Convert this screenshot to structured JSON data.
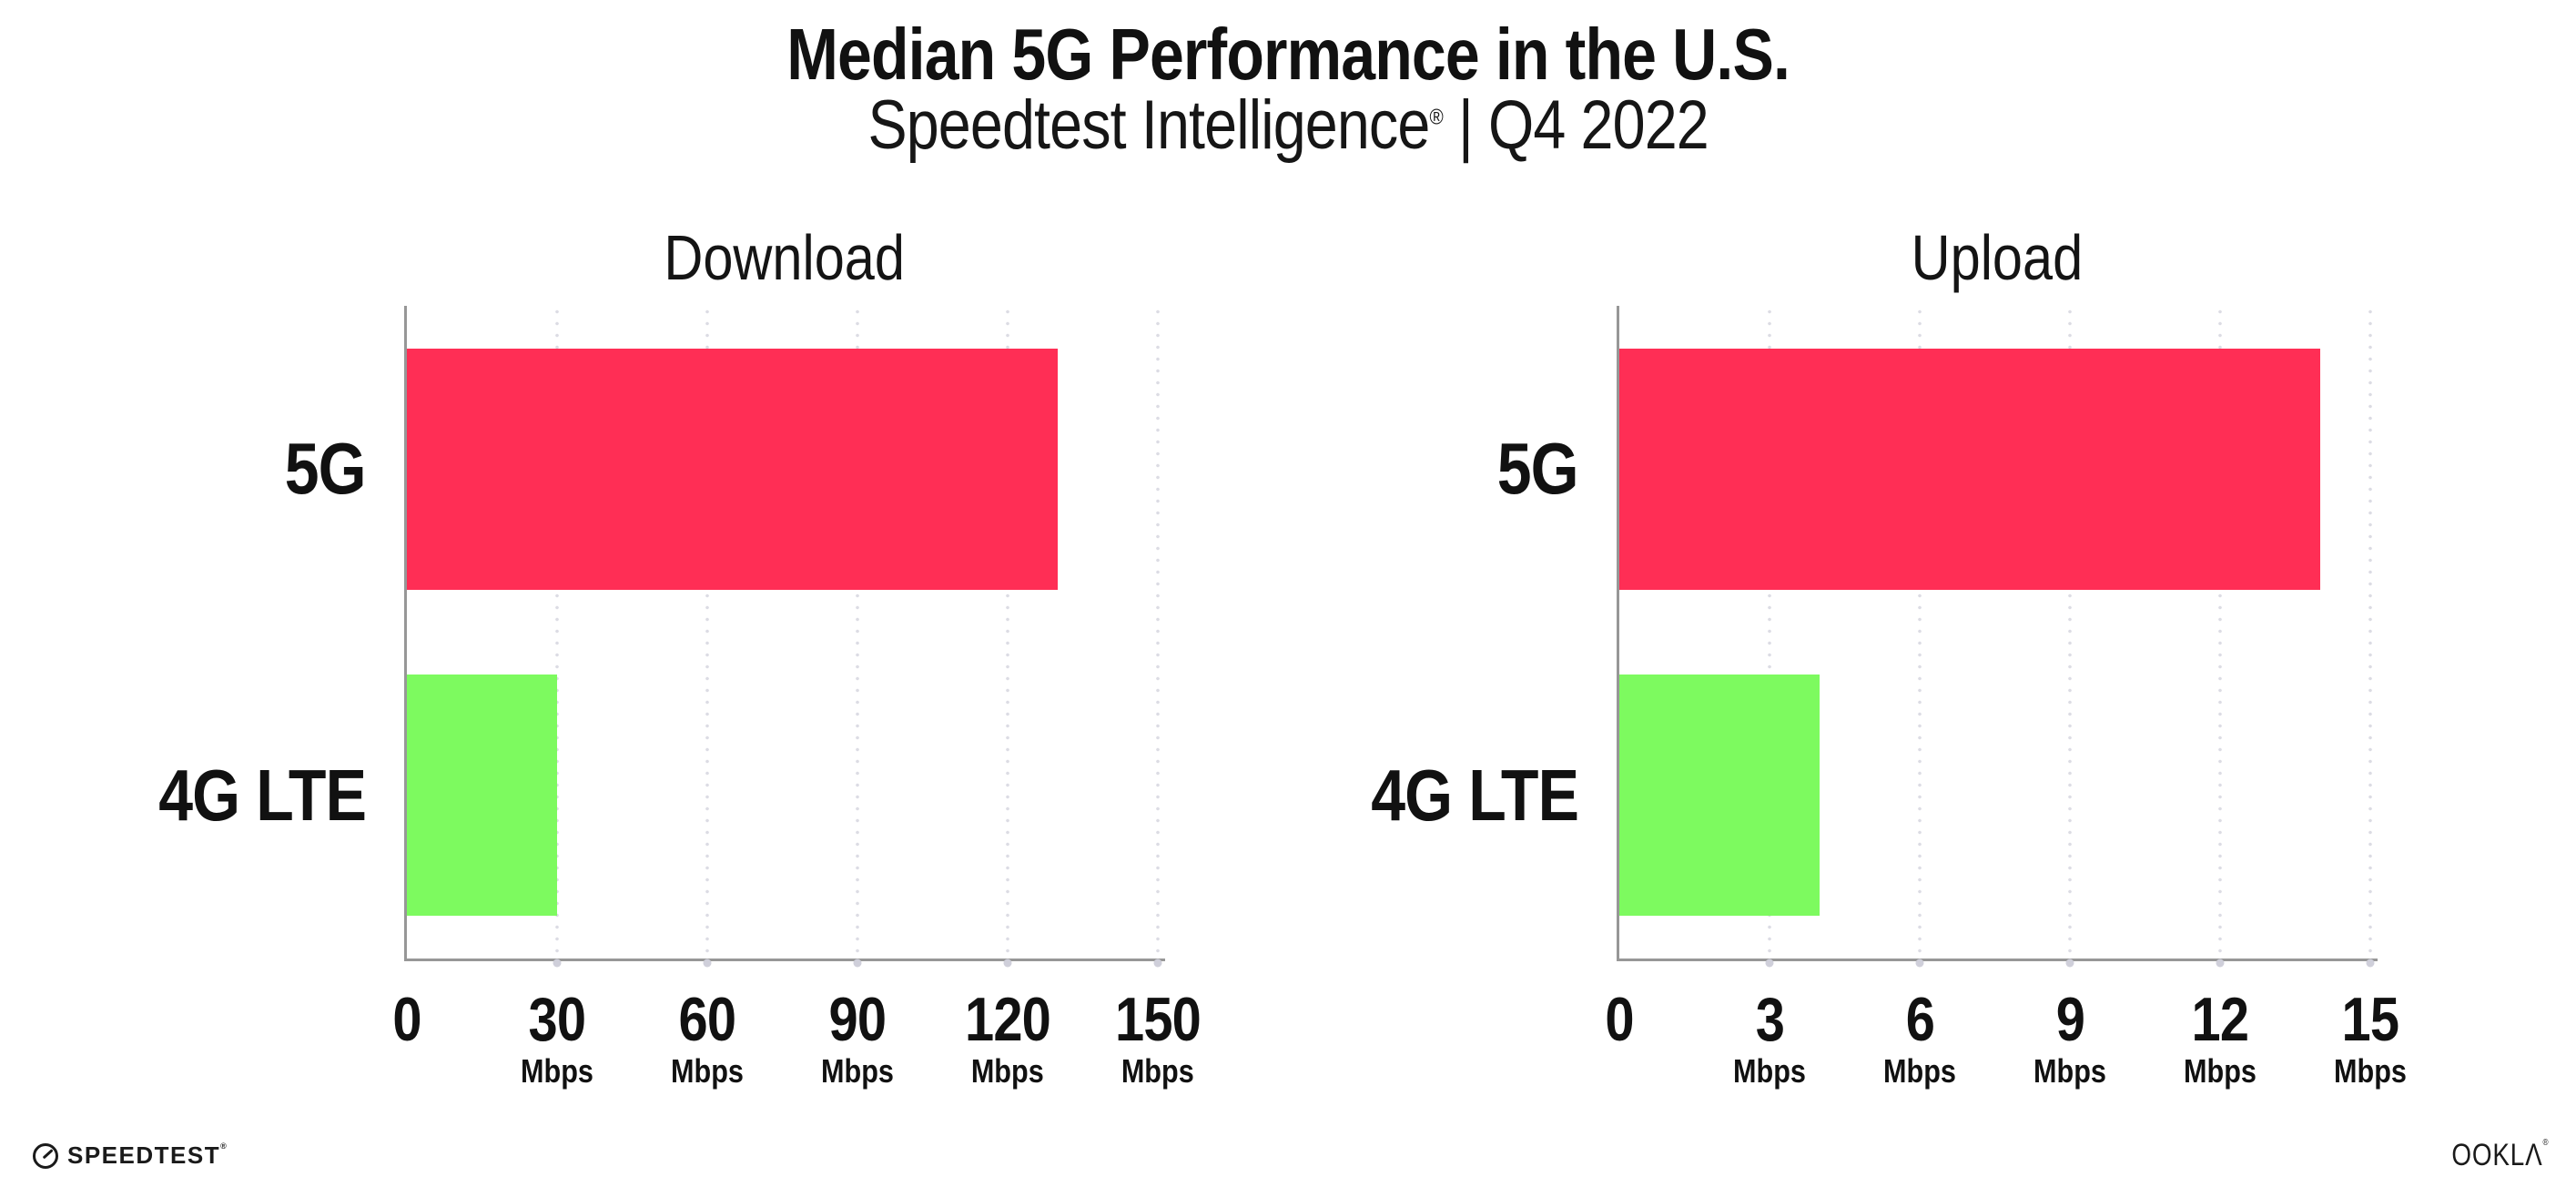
{
  "header": {
    "title": "Median 5G Performance in the U.S.",
    "subtitle_brand": "Speedtest Intelligence",
    "subtitle_reg": "®",
    "subtitle_rest": " | Q4 2022"
  },
  "colors": {
    "bar_5g": "#FF2E55",
    "bar_4g_lte": "#7DFA5F",
    "axis": "#979797",
    "grid_dot": "#DCDCE4",
    "text": "#111111",
    "background": "#FFFFFF"
  },
  "chart_data": [
    {
      "type": "bar",
      "orientation": "horizontal",
      "title": "Download",
      "categories": [
        "5G",
        "4G LTE"
      ],
      "values": [
        130,
        30
      ],
      "unit": "Mbps",
      "xlim": [
        0,
        150
      ],
      "ticks": [
        0,
        30,
        60,
        90,
        120,
        150
      ],
      "bar_colors": [
        "#FF2E55",
        "#7DFA5F"
      ],
      "grid": "dotted-vertical",
      "legend": "none"
    },
    {
      "type": "bar",
      "orientation": "horizontal",
      "title": "Upload",
      "categories": [
        "5G",
        "4G LTE"
      ],
      "values": [
        14,
        4
      ],
      "unit": "Mbps",
      "xlim": [
        0,
        15
      ],
      "ticks": [
        0,
        3,
        6,
        9,
        12,
        15
      ],
      "bar_colors": [
        "#FF2E55",
        "#7DFA5F"
      ],
      "grid": "dotted-vertical",
      "legend": "none"
    }
  ],
  "footer": {
    "speedtest_label": "SPEEDTEST",
    "speedtest_mark": "®",
    "ookla_label": "OOKLΛ",
    "ookla_mark": "®"
  }
}
